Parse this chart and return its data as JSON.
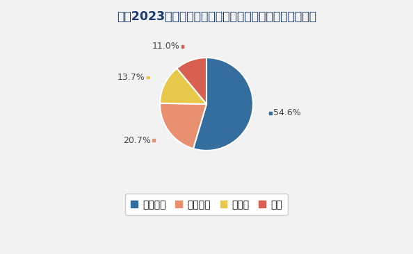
{
  "title": "截至2023年底我国主要双氟磺酰亚胺锂企业产能占比情况",
  "labels": [
    "天赐材料",
    "时代思康",
    "多氟多",
    "其他"
  ],
  "values": [
    54.6,
    20.7,
    13.7,
    11.0
  ],
  "colors": [
    "#336e9e",
    "#e89070",
    "#e8c84a",
    "#d96050"
  ],
  "pct_labels": [
    "54.6%",
    "20.7%",
    "13.7%",
    "11.0%"
  ],
  "startangle": 90,
  "background_color": "#f2f2f2",
  "title_color": "#1a3a6b",
  "title_fontsize": 12.5,
  "legend_fontsize": 10,
  "figsize": [
    5.94,
    3.66
  ],
  "dpi": 100
}
